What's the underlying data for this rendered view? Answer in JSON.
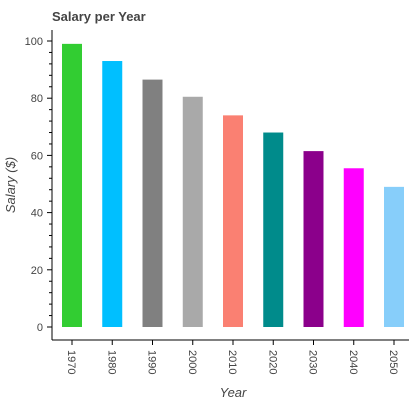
{
  "chart_data": {
    "type": "bar",
    "title": "Salary per Year",
    "xlabel": "Year",
    "ylabel": "Salary ($)",
    "categories": [
      "1970",
      "1980",
      "1990",
      "2000",
      "2010",
      "2020",
      "2030",
      "2040",
      "2050"
    ],
    "values": [
      99,
      93,
      86.5,
      80.5,
      74,
      68,
      61.5,
      55.5,
      49
    ],
    "colors": [
      "#32cd32",
      "#00bfff",
      "#808080",
      "#a9a9a9",
      "#fa8072",
      "#008b8b",
      "#8b008b",
      "#ff00ff",
      "#87cefa"
    ],
    "ylim": [
      0,
      104
    ],
    "yticks": [
      0,
      20,
      40,
      60,
      80,
      100
    ],
    "grid": false,
    "legend": "none"
  }
}
